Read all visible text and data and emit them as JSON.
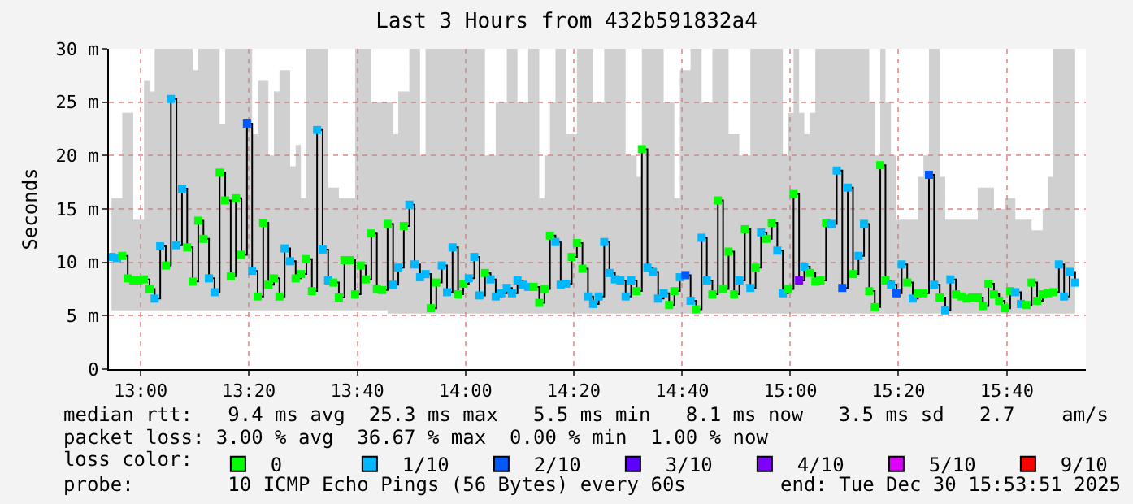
{
  "chart_data": {
    "type": "step",
    "title": "Last 3 Hours from 432b591832a4",
    "ylabel": "Seconds",
    "legend_title": "loss color:",
    "annotations": [
      "median rtt:   9.4 ms avg  25.3 ms max   5.5 ms min   8.1 ms now   3.5 ms sd   2.7    am/s",
      "packet loss: 3.00 % avg  36.67 % max  0.00 % min  1.00 % now",
      "probe:        10 ICMP Echo Pings (56 Bytes) every 60s",
      "end: Tue Dec 30 15:53:51 2025"
    ],
    "xlim": [
      12.902,
      15.91
    ],
    "ylim": [
      0,
      30
    ],
    "xticks": [
      {
        "value": 13,
        "label": "13:00"
      },
      {
        "value": 13.333,
        "label": "13:20"
      },
      {
        "value": 13.667,
        "label": "13:40"
      },
      {
        "value": 14,
        "label": "14:00"
      },
      {
        "value": 14.333,
        "label": "14:20"
      },
      {
        "value": 14.667,
        "label": "14:40"
      },
      {
        "value": 15,
        "label": "15:00"
      },
      {
        "value": 15.333,
        "label": "15:20"
      },
      {
        "value": 15.667,
        "label": "15:40"
      }
    ],
    "yticks": [
      0,
      {
        "value": 5,
        "label": "5 m"
      },
      {
        "value": 10,
        "label": "10 m"
      },
      {
        "value": 15,
        "label": "15 m"
      },
      {
        "value": 20,
        "label": "20 m"
      },
      {
        "value": 25,
        "label": "25 m"
      },
      {
        "value": 30,
        "label": "30 m"
      }
    ],
    "grid": true,
    "legend": "bottom",
    "marker": "square",
    "line_style": "solid",
    "series": [
      {
        "color": "#000000",
        "x": [
          12.91,
          12.927,
          12.943,
          12.96,
          12.977,
          12.993,
          13.01,
          13.027,
          13.043,
          13.06,
          13.077,
          13.093,
          13.11,
          13.127,
          13.143,
          13.16,
          13.177,
          13.193,
          13.21,
          13.227,
          13.243,
          13.26,
          13.277,
          13.293,
          13.31,
          13.327,
          13.343,
          13.36,
          13.377,
          13.393,
          13.41,
          13.427,
          13.443,
          13.46,
          13.477,
          13.493,
          13.51,
          13.527,
          13.543,
          13.56,
          13.577,
          13.593,
          13.61,
          13.627,
          13.643,
          13.66,
          13.677,
          13.693,
          13.71,
          13.727,
          13.743,
          13.76,
          13.777,
          13.793,
          13.81,
          13.827,
          13.843,
          13.86,
          13.877,
          13.893,
          13.91,
          13.927,
          13.943,
          13.96,
          13.977,
          13.993,
          14.01,
          14.027,
          14.043,
          14.06,
          14.077,
          14.093,
          14.11,
          14.127,
          14.143,
          14.16,
          14.177,
          14.193,
          14.21,
          14.227,
          14.243,
          14.26,
          14.277,
          14.293,
          14.31,
          14.327,
          14.343,
          14.36,
          14.377,
          14.393,
          14.41,
          14.427,
          14.443,
          14.46,
          14.477,
          14.493,
          14.51,
          14.527,
          14.543,
          14.56,
          14.577,
          14.593,
          14.61,
          14.627,
          14.643,
          14.66,
          14.677,
          14.693,
          14.71,
          14.727,
          14.743,
          14.76,
          14.777,
          14.793,
          14.81,
          14.827,
          14.843,
          14.86,
          14.877,
          14.893,
          14.91,
          14.927,
          14.943,
          14.96,
          14.977,
          14.993,
          15.01,
          15.027,
          15.043,
          15.06,
          15.077,
          15.093,
          15.11,
          15.127,
          15.143,
          15.16,
          15.177,
          15.193,
          15.21,
          15.227,
          15.243,
          15.26,
          15.277,
          15.293,
          15.31,
          15.327,
          15.343,
          15.36,
          15.377,
          15.393,
          15.41,
          15.427,
          15.443,
          15.46,
          15.477,
          15.493,
          15.51,
          15.527,
          15.543,
          15.56,
          15.577,
          15.593,
          15.61,
          15.627,
          15.643,
          15.66,
          15.677,
          15.693,
          15.71,
          15.727,
          15.743,
          15.76,
          15.777,
          15.793,
          15.81,
          15.827,
          15.843,
          15.86,
          15.877
        ],
        "values": [
          10.5,
          10.4,
          10.6,
          8.5,
          8.3,
          8.3,
          8.4,
          7.5,
          6.6,
          11.5,
          9.7,
          25.3,
          11.6,
          16.9,
          11.4,
          8.2,
          13.9,
          12.2,
          8.5,
          7.2,
          18.4,
          15.8,
          8.7,
          16.0,
          10.7,
          23.0,
          9.2,
          6.8,
          13.7,
          7.9,
          8.5,
          6.8,
          11.3,
          10.1,
          8.5,
          8.9,
          10.3,
          7.3,
          22.4,
          11.2,
          8.3,
          8.1,
          6.7,
          10.2,
          10.2,
          7.0,
          9.7,
          8.4,
          12.7,
          7.5,
          7.4,
          13.6,
          7.9,
          9.5,
          13.4,
          15.4,
          9.8,
          8.6,
          8.9,
          5.7,
          8.1,
          9.7,
          7.2,
          11.4,
          7.0,
          8.0,
          8.5,
          10.5,
          6.9,
          9.0,
          8.4,
          6.8,
          7.1,
          7.6,
          7.1,
          8.3,
          7.9,
          7.7,
          7.7,
          6.2,
          7.5,
          12.5,
          11.9,
          7.9,
          8.0,
          10.5,
          11.8,
          9.4,
          6.8,
          6.1,
          6.8,
          11.9,
          9.0,
          8.4,
          8.3,
          6.8,
          8.3,
          7.3,
          20.6,
          9.5,
          9.1,
          6.6,
          7.1,
          6.0,
          7.3,
          8.6,
          8.8,
          6.4,
          5.6,
          12.3,
          8.3,
          7.0,
          15.8,
          7.5,
          11.0,
          7.0,
          8.3,
          13.1,
          7.6,
          9.5,
          12.8,
          12.2,
          13.7,
          11.1,
          7.1,
          7.5,
          16.4,
          8.3,
          9.6,
          9.0,
          8.2,
          8.3,
          13.7,
          13.6,
          18.6,
          7.6,
          17.0,
          8.9,
          10.6,
          13.6,
          7.3,
          5.8,
          19.1,
          8.3,
          7.9,
          7.1,
          9.8,
          8.1,
          6.6,
          7.1,
          7.1,
          18.2,
          7.9,
          6.7,
          5.5,
          8.4,
          7.0,
          6.8,
          6.6,
          6.7,
          6.7,
          5.9,
          8.0,
          7.0,
          6.4,
          5.7,
          7.3,
          7.2,
          6.1,
          6.0,
          8.1,
          6.4,
          7.0,
          7.1,
          7.2,
          9.8,
          6.8,
          9.1,
          8.1
        ],
        "colors": [
          "#00b8ff",
          "#00b8ff",
          "#00ff00",
          "#00ff00",
          "#00ff00",
          "#00ff00",
          "#00ff00",
          "#00ff00",
          "#00b8ff",
          "#00b8ff",
          "#00ff00",
          "#00b8ff",
          "#00b8ff",
          "#00b8ff",
          "#00ff00",
          "#00ff00",
          "#00ff00",
          "#00ff00",
          "#00b8ff",
          "#00b8ff",
          "#00ff00",
          "#00ff00",
          "#00ff00",
          "#00ff00",
          "#00ff00",
          "#0059ff",
          "#00b8ff",
          "#00ff00",
          "#00ff00",
          "#00ff00",
          "#00ff00",
          "#00ff00",
          "#00b8ff",
          "#00b8ff",
          "#00ff00",
          "#00ff00",
          "#00ff00",
          "#00ff00",
          "#00b8ff",
          "#00b8ff",
          "#00b8ff",
          "#00ff00",
          "#00ff00",
          "#00ff00",
          "#00ff00",
          "#00ff00",
          "#00ff00",
          "#00ff00",
          "#00ff00",
          "#00ff00",
          "#00ff00",
          "#00ff00",
          "#00b8ff",
          "#00b8ff",
          "#00ff00",
          "#00b8ff",
          "#00b8ff",
          "#00b8ff",
          "#00b8ff",
          "#00ff00",
          "#00ff00",
          "#00b8ff",
          "#00b8ff",
          "#00b8ff",
          "#00ff00",
          "#00ff00",
          "#00b8ff",
          "#00b8ff",
          "#00b8ff",
          "#00ff00",
          "#00b8ff",
          "#00b8ff",
          "#00b8ff",
          "#00b8ff",
          "#00b8ff",
          "#00b8ff",
          "#00b8ff",
          "#00b8ff",
          "#00ff00",
          "#00ff00",
          "#00ff00",
          "#00ff00",
          "#00b8ff",
          "#00b8ff",
          "#00b8ff",
          "#00ff00",
          "#00ff00",
          "#00ff00",
          "#00b8ff",
          "#00b8ff",
          "#00b8ff",
          "#00b8ff",
          "#00b8ff",
          "#00b8ff",
          "#00b8ff",
          "#00b8ff",
          "#00b8ff",
          "#00ff00",
          "#00ff00",
          "#00b8ff",
          "#00b8ff",
          "#00b8ff",
          "#00b8ff",
          "#00ff00",
          "#00ff00",
          "#00b8ff",
          "#0059ff",
          "#00b8ff",
          "#00ff00",
          "#00b8ff",
          "#00b8ff",
          "#00ff00",
          "#00ff00",
          "#00ff00",
          "#00ff00",
          "#00ff00",
          "#00b8ff",
          "#00ff00",
          "#00b8ff",
          "#00ff00",
          "#00b8ff",
          "#00ff00",
          "#00ff00",
          "#00b8ff",
          "#00b8ff",
          "#00ff00",
          "#00ff00",
          "#7e00ff",
          "#00b8ff",
          "#00ff00",
          "#00ff00",
          "#00ff00",
          "#00ff00",
          "#00b8ff",
          "#00b8ff",
          "#0059ff",
          "#00b8ff",
          "#00ff00",
          "#00b8ff",
          "#00b8ff",
          "#00ff00",
          "#00ff00",
          "#00ff00",
          "#00ff00",
          "#00b8ff",
          "#0059ff",
          "#00b8ff",
          "#00ff00",
          "#00b8ff",
          "#00ff00",
          "#00ff00",
          "#0059ff",
          "#00b8ff",
          "#00ff00",
          "#00b8ff",
          "#00b8ff",
          "#00ff00",
          "#00ff00",
          "#00ff00",
          "#00ff00",
          "#00ff00",
          "#00ff00",
          "#00ff00",
          "#00ff00",
          "#00ff00",
          "#00ff00",
          "#00ff00",
          "#00b8ff",
          "#00b8ff",
          "#00ff00",
          "#00ff00",
          "#00ff00",
          "#00ff00",
          "#00ff00",
          "#00ff00",
          "#00b8ff",
          "#00b8ff",
          "#00b8ff",
          "#00b8ff"
        ],
        "lower": [
          5.5,
          5.5,
          5.5,
          5.5,
          5.5,
          5.5,
          5.5,
          5.5,
          5.5,
          5.5,
          5.5,
          5.5,
          5.5,
          5.5,
          5.5,
          5.5,
          5.5,
          5.5,
          5.5,
          5.5,
          5.5,
          5.5,
          5.5,
          5.5,
          5.5,
          5.5,
          5.5,
          5.5,
          5.5,
          5.5,
          5.5,
          5.5,
          5.5,
          5.5,
          5.5,
          5.5,
          5.5,
          5.5,
          5.5,
          5.5,
          5.5,
          5.5,
          5.5,
          5.5,
          5.5,
          5.5,
          5.5,
          5.5,
          5.5,
          5.5,
          5.5,
          5.5,
          5.2,
          5.2,
          5.2,
          5.2,
          5.2,
          5.2,
          5.2,
          5.2,
          5.2,
          5.2,
          5.2,
          5.2,
          5.2,
          5.2,
          5.2,
          5.2,
          5.2,
          5.2,
          5.2,
          5.2,
          5.2,
          5.2,
          5.2,
          5.2,
          5.2,
          5.2,
          5.2,
          5.2,
          5.2,
          5.2,
          5.2,
          5.2,
          5.2,
          5.2,
          5.2,
          5.2,
          5.2,
          5.2,
          5.2,
          5.2,
          5.2,
          5.2,
          5.2,
          5.2,
          5.2,
          5.2,
          5.2,
          5.2,
          5.2,
          5.2,
          5.2,
          5.2,
          5.2,
          5.2,
          5.2,
          5.2,
          5.2,
          5.2,
          5.2,
          5.2,
          5.2,
          5.2,
          5.2,
          5.2,
          5.2,
          5.2,
          5.2,
          5.2,
          5.2,
          5.2,
          5.2,
          5.2,
          5.2,
          5.2,
          5.2,
          5.2,
          5.2,
          5.2,
          5.2,
          5.2,
          5.2,
          5.2,
          5.2,
          5.2,
          5.2,
          5.2,
          5.2,
          5.2,
          5.2,
          5.2,
          5.2,
          5.2,
          5.2,
          5.2,
          5.2,
          5.2,
          5.2,
          5.2,
          5.2,
          5.2,
          5.2,
          5.2,
          5.2,
          5.2,
          5.2,
          5.2,
          5.2,
          5.2,
          5.2,
          5.2,
          5.2,
          5.2,
          5.2,
          5.2,
          5.2,
          5.2,
          5.2,
          5.2,
          5.2,
          5.2,
          5.2,
          5.2,
          5.2,
          5.2,
          5.2,
          5.2,
          5.2
        ],
        "upper": [
          16,
          16,
          24,
          24,
          14,
          14,
          27,
          26,
          30,
          30,
          30,
          30,
          30,
          30,
          30,
          28,
          30,
          30,
          30,
          30,
          23,
          30,
          30,
          30,
          30,
          30,
          22,
          27,
          27,
          20,
          26,
          28,
          28,
          19,
          21,
          16,
          30,
          30,
          30,
          30,
          17,
          17,
          16,
          16,
          16,
          30,
          30,
          30,
          25,
          25,
          25,
          25,
          22,
          26,
          26,
          30,
          30,
          20,
          30,
          30,
          30,
          30,
          30,
          30,
          30,
          30,
          30,
          30,
          30,
          20,
          20,
          25,
          25,
          30,
          30,
          25,
          25,
          30,
          30,
          16,
          20,
          25,
          30,
          30,
          22,
          22,
          30,
          30,
          30,
          25,
          25,
          30,
          30,
          30,
          30,
          20,
          20,
          18,
          30,
          30,
          30,
          30,
          25,
          25,
          16,
          28,
          28,
          30,
          30,
          25,
          25,
          30,
          30,
          30,
          22,
          22,
          20,
          20,
          30,
          30,
          30,
          30,
          30,
          30,
          20,
          24,
          30,
          24,
          22,
          24,
          30,
          30,
          30,
          30,
          30,
          30,
          30,
          30,
          30,
          30,
          25,
          20,
          30,
          25,
          20,
          14,
          14,
          14,
          14,
          18,
          20,
          30,
          30,
          18,
          14,
          14,
          14,
          14,
          14,
          14,
          17,
          17,
          17,
          15,
          15,
          16,
          16,
          14,
          14,
          14,
          13,
          13,
          15,
          18,
          30,
          30,
          30,
          30,
          22
        ]
      },
      {
        "type": "scatter",
        "name": "0",
        "color": "#00ff00"
      },
      {
        "type": "scatter",
        "name": "1/10",
        "color": "#00b8ff"
      },
      {
        "type": "scatter",
        "name": "2/10",
        "color": "#0059ff"
      },
      {
        "type": "scatter",
        "name": "3/10",
        "color": "#5e00ff"
      },
      {
        "type": "scatter",
        "name": "4/10",
        "color": "#7e00ff"
      },
      {
        "type": "scatter",
        "name": "5/10",
        "color": "#dd00ff"
      },
      {
        "type": "scatter",
        "name": "9/10",
        "color": "#ff0000"
      }
    ]
  }
}
